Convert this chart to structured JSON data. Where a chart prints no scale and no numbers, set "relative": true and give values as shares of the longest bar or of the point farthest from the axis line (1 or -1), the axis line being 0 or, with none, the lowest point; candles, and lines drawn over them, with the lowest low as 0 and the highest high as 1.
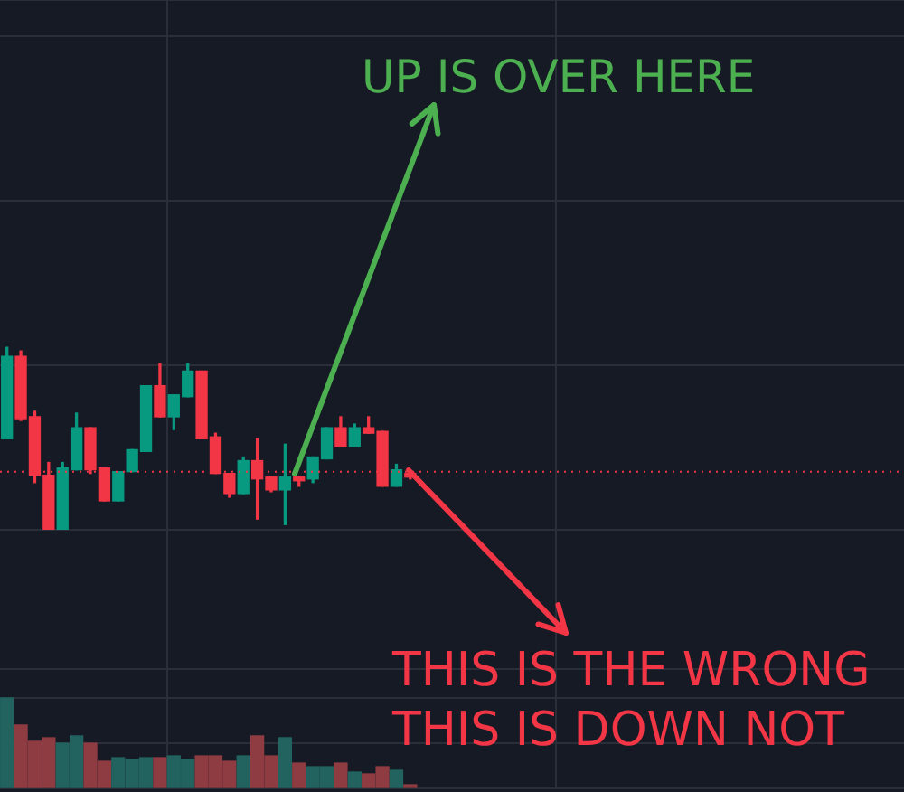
{
  "chart_data": [
    {
      "type": "candlestick",
      "relative": true,
      "grid": true,
      "legend": false,
      "categories": [
        null,
        null,
        null,
        null,
        null,
        null,
        null,
        null,
        null,
        null,
        null,
        null,
        null,
        null,
        null,
        null,
        null,
        null,
        null,
        null,
        null,
        null,
        null,
        null,
        null,
        null,
        null,
        null,
        null,
        null
      ],
      "ohlc": [
        [
          0.5,
          1.0,
          0.5,
          0.95
        ],
        [
          0.95,
          0.98,
          0.6,
          0.61
        ],
        [
          0.62,
          0.65,
          0.26,
          0.3
        ],
        [
          0.3,
          0.37,
          0,
          0
        ],
        [
          0,
          0.37,
          0,
          0.34
        ],
        [
          0.33,
          0.64,
          0.33,
          0.56
        ],
        [
          0.56,
          0.56,
          0.31,
          0.33
        ],
        [
          0.34,
          0.34,
          0.16,
          0.16
        ],
        [
          0.16,
          0.32,
          0.16,
          0.32
        ],
        [
          0.32,
          0.44,
          0.32,
          0.44
        ],
        [
          0.43,
          0.79,
          0.43,
          0.79
        ],
        [
          0.79,
          0.91,
          0.62,
          0.62
        ],
        [
          0.62,
          0.74,
          0.55,
          0.74
        ],
        [
          0.73,
          0.91,
          0.73,
          0.87
        ],
        [
          0.87,
          0.87,
          0.5,
          0.5
        ],
        [
          0.51,
          0.53,
          0.31,
          0.31
        ],
        [
          0.31,
          0.31,
          0.18,
          0.2
        ],
        [
          0.2,
          0.4,
          0.2,
          0.38
        ],
        [
          0.38,
          0.5,
          0.06,
          0.28
        ],
        [
          0.29,
          0.29,
          0.21,
          0.22
        ],
        [
          0.22,
          0.47,
          0.03,
          0.29
        ],
        [
          0.29,
          0.29,
          0.24,
          0.27
        ],
        [
          0.28,
          0.4,
          0.26,
          0.4
        ],
        [
          0.39,
          0.56,
          0.39,
          0.56
        ],
        [
          0.56,
          0.62,
          0.46,
          0.46
        ],
        [
          0.46,
          0.58,
          0.46,
          0.56
        ],
        [
          0.56,
          0.62,
          0.53,
          0.53
        ],
        [
          0.54,
          0.54,
          0.24,
          0.24
        ],
        [
          0.24,
          0.36,
          0.24,
          0.33
        ],
        [
          0.31,
          0.32,
          0.28,
          0.29
        ]
      ],
      "colors": [
        "#089981",
        "#f23645",
        "#f23645",
        "#f23645",
        "#089981",
        "#089981",
        "#f23645",
        "#f23645",
        "#089981",
        "#089981",
        "#089981",
        "#f23645",
        "#089981",
        "#089981",
        "#f23645",
        "#f23645",
        "#f23645",
        "#089981",
        "#f23645",
        "#f23645",
        "#089981",
        "#f23645",
        "#089981",
        "#089981",
        "#f23645",
        "#089981",
        "#f23645",
        "#f23645",
        "#089981",
        "#f23645"
      ],
      "ref_lines": [
        {
          "axis": "y",
          "value": 0.32,
          "color": "#f23645",
          "line_style": "dotted"
        }
      ],
      "annotations": [
        "UP IS OVER HERE",
        "THIS IS THE WRONG",
        "THIS IS DOWN NOT"
      ]
    },
    {
      "type": "bar",
      "relative": true,
      "grid": true,
      "legend": false,
      "categories": [
        null,
        null,
        null,
        null,
        null,
        null,
        null,
        null,
        null,
        null,
        null,
        null,
        null,
        null,
        null,
        null,
        null,
        null,
        null,
        null,
        null,
        null,
        null,
        null,
        null,
        null,
        null,
        null,
        null,
        null
      ],
      "values": [
        1,
        0.7,
        0.52,
        0.56,
        0.5,
        0.58,
        0.5,
        0.3,
        0.34,
        0.32,
        0.34,
        0.34,
        0.36,
        0.32,
        0.36,
        0.36,
        0.3,
        0.36,
        0.58,
        0.36,
        0.56,
        0.28,
        0.24,
        0.24,
        0.28,
        0.18,
        0.16,
        0.24,
        0.2,
        0.04
      ],
      "colors": [
        "#22625f",
        "#8e3b42",
        "#8e3b42",
        "#8e3b42",
        "#22625f",
        "#22625f",
        "#8e3b42",
        "#8e3b42",
        "#22625f",
        "#22625f",
        "#22625f",
        "#8e3b42",
        "#22625f",
        "#22625f",
        "#8e3b42",
        "#8e3b42",
        "#8e3b42",
        "#22625f",
        "#8e3b42",
        "#8e3b42",
        "#22625f",
        "#8e3b42",
        "#22625f",
        "#22625f",
        "#8e3b42",
        "#22625f",
        "#8e3b42",
        "#8e3b42",
        "#22625f",
        "#8e3b42"
      ]
    }
  ]
}
